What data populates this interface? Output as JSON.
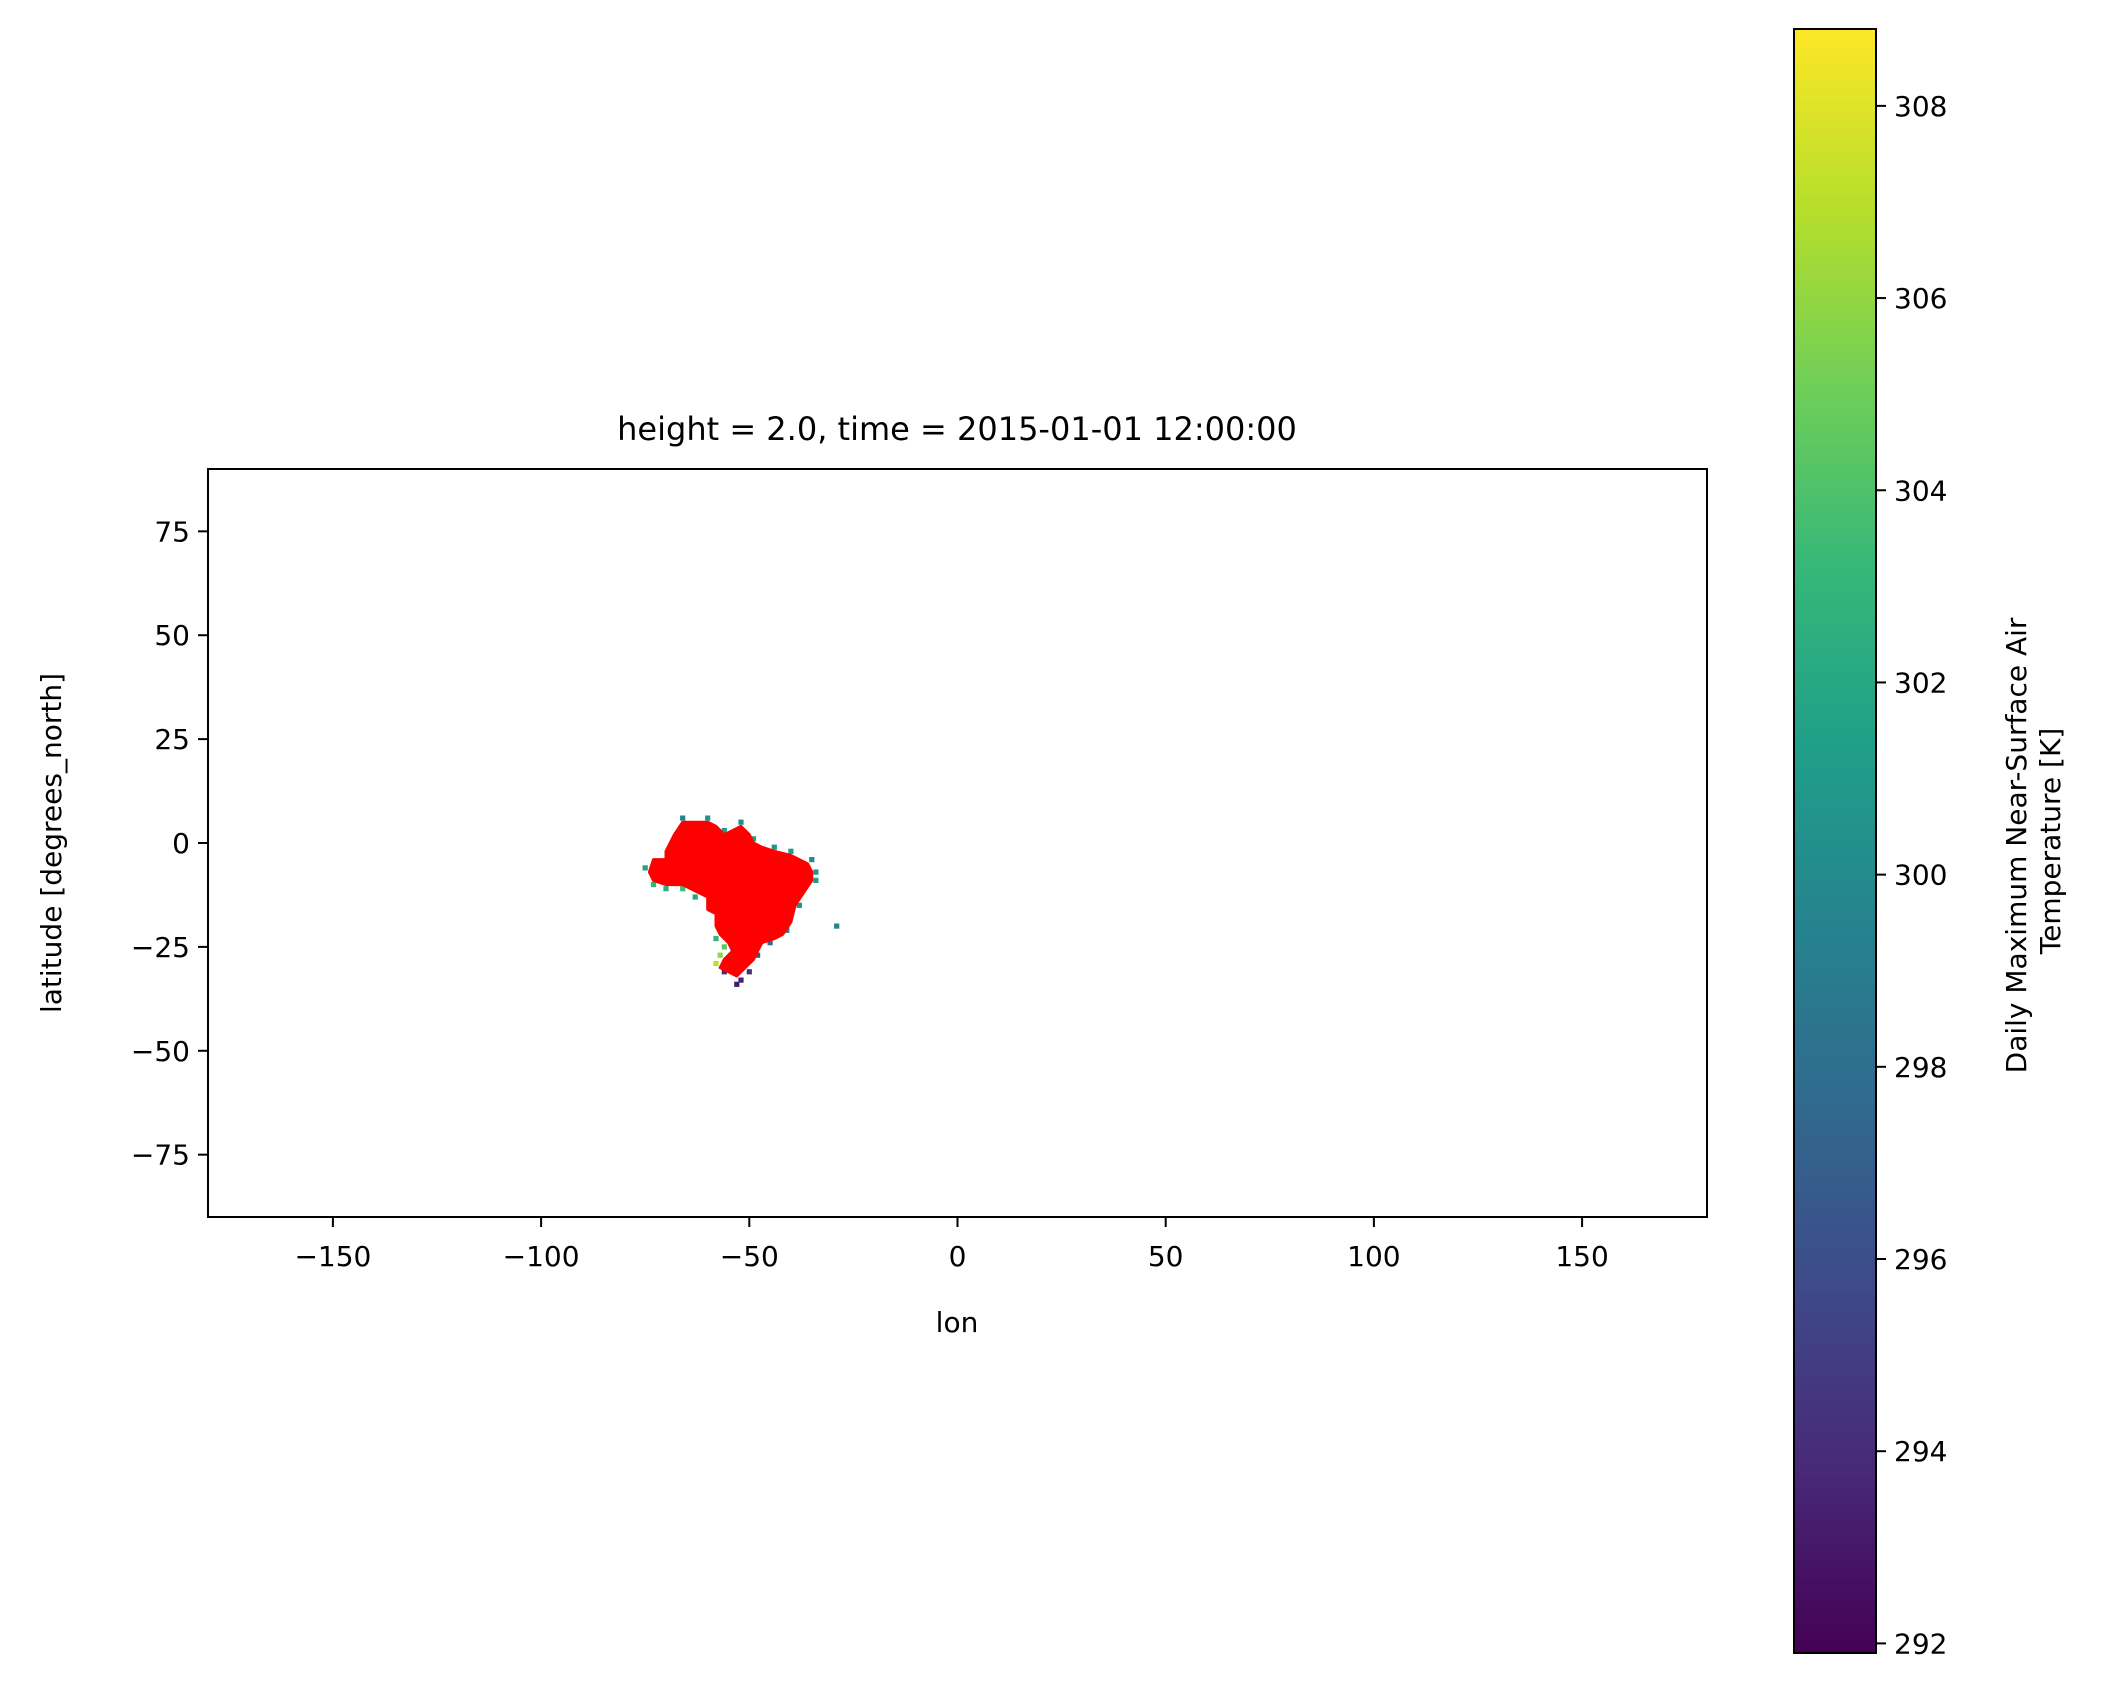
{
  "chart_data": {
    "type": "heatmap",
    "title": "height = 2.0, time = 2015-01-01 12:00:00",
    "xlabel": "lon",
    "ylabel": "latitude [degrees_north]",
    "xlim": [
      -180,
      180
    ],
    "ylim": [
      -90,
      90
    ],
    "xticks": [
      -150,
      -100,
      -50,
      0,
      50,
      100,
      150
    ],
    "xtick_labels": [
      "−150",
      "−100",
      "−50",
      "0",
      "50",
      "100",
      "150"
    ],
    "yticks": [
      75,
      50,
      25,
      0,
      -25,
      -50,
      -75
    ],
    "ytick_labels": [
      "75",
      "50",
      "25",
      "0",
      "−25",
      "−50",
      "−75"
    ],
    "grid": false,
    "colorbar": {
      "label_lines": [
        "Daily Maximum Near-Surface Air",
        "Temperature [K]"
      ],
      "range": [
        291.9,
        308.8
      ],
      "ticks": [
        292,
        294,
        296,
        298,
        300,
        302,
        304,
        306,
        308
      ],
      "tick_labels": [
        "292",
        "294",
        "296",
        "298",
        "300",
        "302",
        "304",
        "306",
        "308"
      ],
      "colormap": "viridis",
      "colormap_stops": [
        "#440154",
        "#482878",
        "#3e4989",
        "#31688e",
        "#26828e",
        "#1f9e89",
        "#35b779",
        "#6ece58",
        "#b5de2b",
        "#fde725"
      ]
    },
    "region": {
      "fill_color": "#ff0000",
      "outline": [
        [
          -66,
          5
        ],
        [
          -60,
          5
        ],
        [
          -58,
          4
        ],
        [
          -56,
          2
        ],
        [
          -52,
          4
        ],
        [
          -50,
          2
        ],
        [
          -49,
          0
        ],
        [
          -47,
          -1
        ],
        [
          -44,
          -2
        ],
        [
          -40,
          -3
        ],
        [
          -36,
          -5
        ],
        [
          -35,
          -7
        ],
        [
          -35,
          -9
        ],
        [
          -37,
          -12
        ],
        [
          -39,
          -15
        ],
        [
          -40,
          -19
        ],
        [
          -42,
          -22
        ],
        [
          -44,
          -23
        ],
        [
          -47,
          -24
        ],
        [
          -48,
          -26
        ],
        [
          -49,
          -28
        ],
        [
          -51,
          -30
        ],
        [
          -53,
          -32
        ],
        [
          -55,
          -31
        ],
        [
          -57,
          -30
        ],
        [
          -56,
          -28
        ],
        [
          -54,
          -26
        ],
        [
          -55,
          -24
        ],
        [
          -57,
          -22
        ],
        [
          -58,
          -20
        ],
        [
          -58,
          -17
        ],
        [
          -60,
          -16
        ],
        [
          -60,
          -13
        ],
        [
          -62,
          -12
        ],
        [
          -66,
          -10
        ],
        [
          -70,
          -10
        ],
        [
          -73,
          -9
        ],
        [
          -74,
          -7
        ],
        [
          -73,
          -4
        ],
        [
          -70,
          -4
        ],
        [
          -70,
          -2
        ],
        [
          -69,
          0
        ],
        [
          -68,
          2
        ]
      ],
      "edge_cells": [
        {
          "lon": -75,
          "lat": -6,
          "k": 301.5
        },
        {
          "lon": -73,
          "lat": -10,
          "k": 303.0
        },
        {
          "lon": -70,
          "lat": -11,
          "k": 302.5
        },
        {
          "lon": -66,
          "lat": -11,
          "k": 303.5
        },
        {
          "lon": -63,
          "lat": -13,
          "k": 302.0
        },
        {
          "lon": -66,
          "lat": 6,
          "k": 299.5
        },
        {
          "lon": -60,
          "lat": 6,
          "k": 300.5
        },
        {
          "lon": -56,
          "lat": 3,
          "k": 301.0
        },
        {
          "lon": -52,
          "lat": 5,
          "k": 300.0
        },
        {
          "lon": -49,
          "lat": 1,
          "k": 301.5
        },
        {
          "lon": -44,
          "lat": -1,
          "k": 300.5
        },
        {
          "lon": -40,
          "lat": -2,
          "k": 301.0
        },
        {
          "lon": -35,
          "lat": -4,
          "k": 300.0
        },
        {
          "lon": -34,
          "lat": -7,
          "k": 300.5
        },
        {
          "lon": -34,
          "lat": -9,
          "k": 301.0
        },
        {
          "lon": -38,
          "lat": -15,
          "k": 300.0
        },
        {
          "lon": -41,
          "lat": -21,
          "k": 299.0
        },
        {
          "lon": -45,
          "lat": -24,
          "k": 298.0
        },
        {
          "lon": -48,
          "lat": -27,
          "k": 296.5
        },
        {
          "lon": -50,
          "lat": -31,
          "k": 294.5
        },
        {
          "lon": -52,
          "lat": -33,
          "k": 293.5
        },
        {
          "lon": -53,
          "lat": -34,
          "k": 293.0
        },
        {
          "lon": -56,
          "lat": -31,
          "k": 294.0
        },
        {
          "lon": -58,
          "lat": -29,
          "k": 307.0
        },
        {
          "lon": -57,
          "lat": -27,
          "k": 306.0
        },
        {
          "lon": -56,
          "lat": -25,
          "k": 304.5
        },
        {
          "lon": -58,
          "lat": -23,
          "k": 303.0
        },
        {
          "lon": -29,
          "lat": -20,
          "k": 299.5
        }
      ]
    }
  }
}
